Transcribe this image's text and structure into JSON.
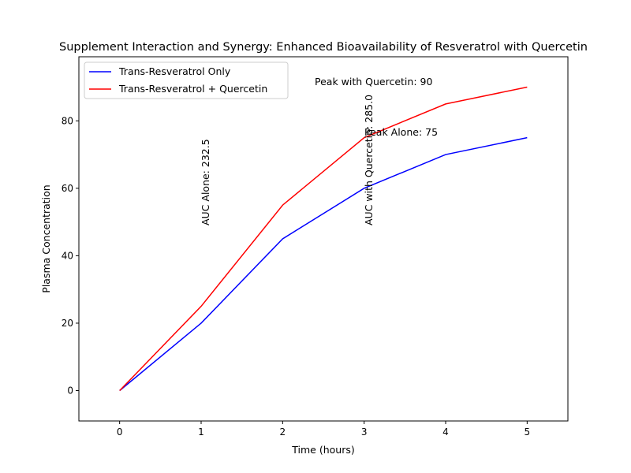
{
  "chart_data": {
    "type": "line",
    "title": "Supplement Interaction and Synergy: Enhanced Bioavailability of Resveratrol with Quercetin",
    "x_label": "Time (hours)",
    "y_label": "Plasma Concentration",
    "x": [
      0,
      1,
      2,
      3,
      4,
      5
    ],
    "series": [
      {
        "name": "Trans-Resveratrol Only",
        "color": "#0000ff",
        "values": [
          0,
          20,
          45,
          60,
          70,
          75
        ]
      },
      {
        "name": "Trans-Resveratrol + Quercetin",
        "color": "#ff0000",
        "values": [
          0,
          25,
          55,
          75,
          85,
          90
        ]
      }
    ],
    "annotations": [
      "AUC Alone: 232.5",
      "AUC with Quercetin: 285.0",
      "Peak Alone: 75",
      "Peak with Quercetin: 90"
    ],
    "xlim": [
      -0.5,
      5.5
    ],
    "xticks": [
      0,
      1,
      2,
      3,
      4,
      5
    ],
    "ylim": [
      -9,
      99
    ],
    "yticks": [
      0,
      20,
      40,
      60,
      80
    ],
    "grid": false,
    "legend": "upper-left"
  }
}
